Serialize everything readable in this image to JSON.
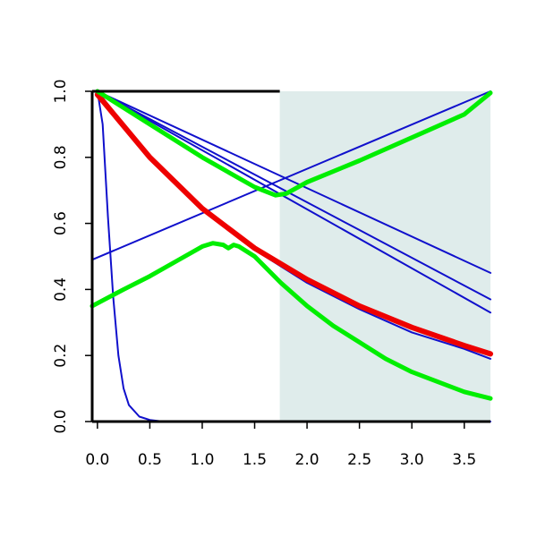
{
  "chart_data": {
    "type": "line",
    "title": "",
    "xlabel": "",
    "ylabel": "",
    "xlim": [
      -0.05,
      3.75
    ],
    "ylim": [
      0.0,
      1.0
    ],
    "x_ticks": [
      0.0,
      0.5,
      1.0,
      1.5,
      2.0,
      2.5,
      3.0,
      3.5
    ],
    "x_tick_labels": [
      "0.0",
      "0.5",
      "1.0",
      "1.5",
      "2.0",
      "2.5",
      "3.0",
      "3.5"
    ],
    "y_ticks": [
      0.0,
      0.2,
      0.4,
      0.6,
      0.8,
      1.0
    ],
    "y_tick_labels": [
      "0.0",
      "0.2",
      "0.4",
      "0.6",
      "0.8",
      "1.0"
    ],
    "grid": false,
    "legend": "none",
    "shaded_region": {
      "x_from": 1.74,
      "x_to": 3.75,
      "color": "#dfeceb"
    },
    "colors": {
      "blue": "#1010cc",
      "red": "#ee0000",
      "green": "#00ee00",
      "axis": "#000000"
    },
    "series": [
      {
        "color": "#1010cc",
        "width": 2,
        "points": [
          [
            0.0,
            1.0
          ],
          [
            0.05,
            0.9
          ],
          [
            0.1,
            0.62
          ],
          [
            0.15,
            0.38
          ],
          [
            0.2,
            0.2
          ],
          [
            0.25,
            0.1
          ],
          [
            0.3,
            0.05
          ],
          [
            0.4,
            0.015
          ],
          [
            0.5,
            0.005
          ],
          [
            0.6,
            0.001
          ],
          [
            0.8,
            0.0
          ],
          [
            3.75,
            0.0
          ]
        ]
      },
      {
        "color": "#1010cc",
        "width": 2,
        "points": [
          [
            -0.05,
            0.49
          ],
          [
            3.75,
            1.0
          ]
        ]
      },
      {
        "color": "#1010cc",
        "width": 2,
        "points": [
          [
            0.0,
            1.0
          ],
          [
            3.75,
            0.45
          ]
        ]
      },
      {
        "color": "#1010cc",
        "width": 2,
        "points": [
          [
            0.0,
            1.0
          ],
          [
            3.75,
            0.37
          ]
        ]
      },
      {
        "color": "#1010cc",
        "width": 2,
        "points": [
          [
            0.0,
            1.0
          ],
          [
            3.75,
            0.33
          ]
        ]
      },
      {
        "color": "#1010cc",
        "width": 2,
        "points": [
          [
            0.0,
            1.0
          ],
          [
            0.5,
            0.8
          ],
          [
            1.0,
            0.64
          ],
          [
            1.5,
            0.52
          ],
          [
            2.0,
            0.42
          ],
          [
            2.5,
            0.34
          ],
          [
            3.0,
            0.27
          ],
          [
            3.5,
            0.22
          ],
          [
            3.75,
            0.19
          ]
        ]
      },
      {
        "color": "#ee0000",
        "width": 6,
        "points": [
          [
            0.0,
            0.99
          ],
          [
            0.5,
            0.8
          ],
          [
            1.0,
            0.645
          ],
          [
            1.5,
            0.525
          ],
          [
            2.0,
            0.43
          ],
          [
            2.5,
            0.35
          ],
          [
            3.0,
            0.285
          ],
          [
            3.5,
            0.23
          ],
          [
            3.75,
            0.205
          ]
        ]
      },
      {
        "color": "#00ee00",
        "width": 5,
        "points": [
          [
            0.0,
            1.0
          ],
          [
            0.5,
            0.9
          ],
          [
            1.0,
            0.8
          ],
          [
            1.5,
            0.71
          ],
          [
            1.7,
            0.685
          ],
          [
            1.8,
            0.69
          ],
          [
            2.0,
            0.725
          ],
          [
            2.5,
            0.79
          ],
          [
            3.0,
            0.86
          ],
          [
            3.5,
            0.93
          ],
          [
            3.75,
            0.995
          ]
        ]
      },
      {
        "color": "#00ee00",
        "width": 5,
        "points": [
          [
            -0.05,
            0.35
          ],
          [
            0.25,
            0.4
          ],
          [
            0.5,
            0.44
          ],
          [
            0.75,
            0.485
          ],
          [
            1.0,
            0.53
          ],
          [
            1.1,
            0.54
          ],
          [
            1.2,
            0.535
          ],
          [
            1.25,
            0.525
          ],
          [
            1.3,
            0.535
          ],
          [
            1.35,
            0.53
          ],
          [
            1.5,
            0.5
          ],
          [
            1.75,
            0.42
          ],
          [
            2.0,
            0.35
          ],
          [
            2.25,
            0.29
          ],
          [
            2.5,
            0.24
          ],
          [
            2.75,
            0.19
          ],
          [
            3.0,
            0.15
          ],
          [
            3.25,
            0.12
          ],
          [
            3.5,
            0.09
          ],
          [
            3.75,
            0.07
          ]
        ]
      }
    ]
  }
}
